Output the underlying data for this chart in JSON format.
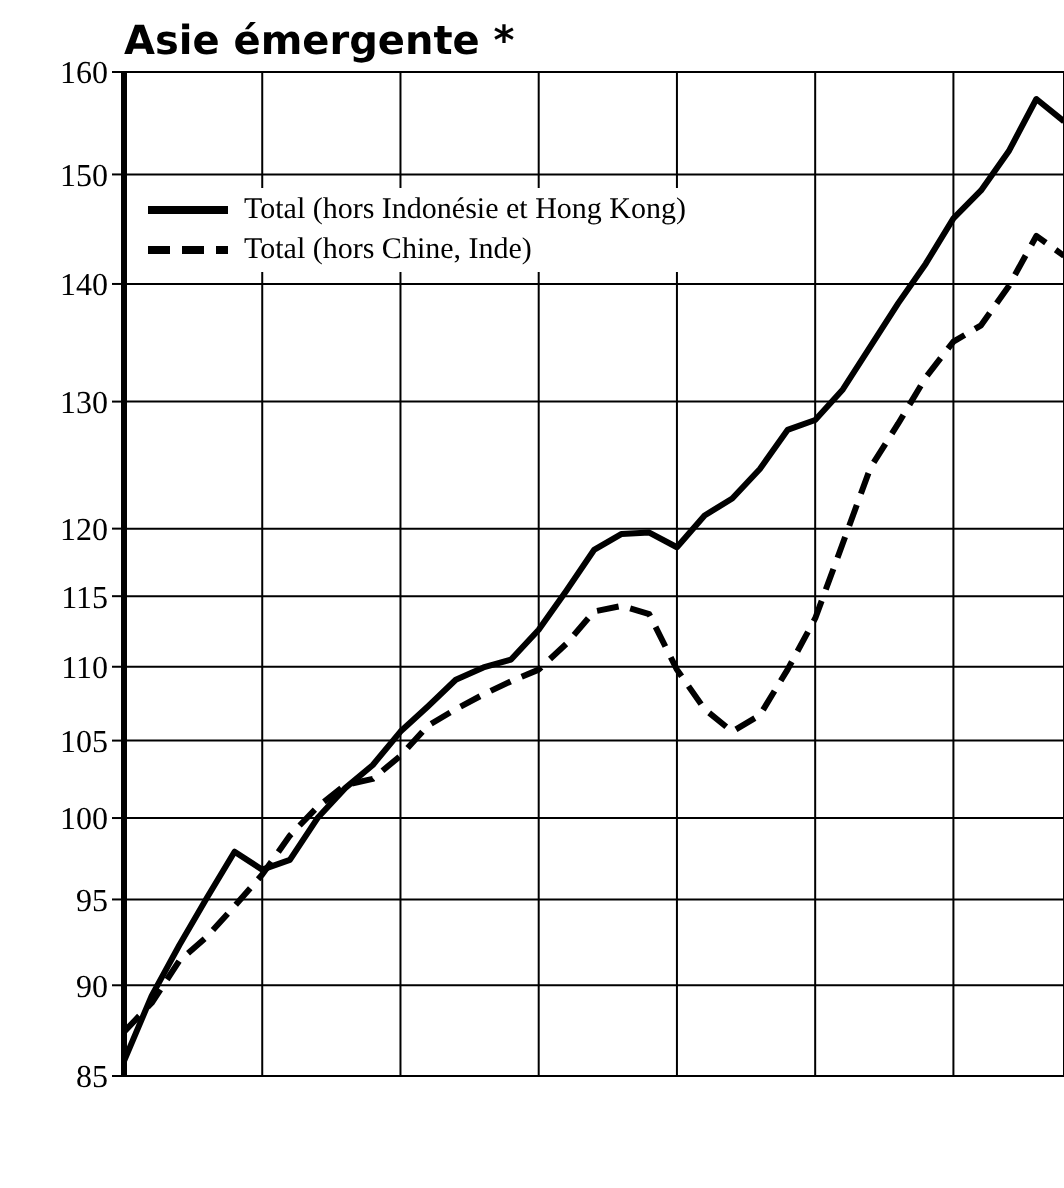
{
  "chart_data": {
    "type": "line",
    "title": "Asie émergente *",
    "log": "y",
    "grid": true,
    "legend": "top left",
    "tick_labels": "y",
    "marker": "none",
    "categories": [
      null,
      null,
      null,
      null,
      null,
      null,
      null,
      null,
      null,
      null,
      null,
      null,
      null,
      null,
      null,
      null,
      null,
      null,
      null,
      null,
      null,
      null,
      null,
      null,
      null,
      null,
      null,
      null,
      null,
      null,
      null,
      null,
      null,
      null,
      null
    ],
    "ylim": [
      85,
      160
    ],
    "yticks": [
      85,
      90,
      95,
      100,
      105,
      110,
      115,
      120,
      130,
      140,
      150,
      160
    ],
    "series": [
      {
        "name": "Total (hors Indonésie et Hong Kong)",
        "color": "#000000",
        "line_style": "solid",
        "values": [
          85.8,
          89.4,
          92.3,
          95.1,
          97.9,
          96.8,
          97.4,
          100.0,
          101.9,
          103.4,
          105.6,
          107.3,
          109.1,
          109.95,
          110.5,
          112.6,
          115.4,
          118.4,
          119.6,
          119.7,
          118.6,
          121.0,
          122.3,
          124.6,
          127.7,
          128.5,
          131.0,
          134.6,
          138.3,
          141.8,
          145.9,
          148.5,
          152.2,
          157.3,
          155.1
        ]
      },
      {
        "name": "Total (hors Chine, Inde)",
        "color": "#000000",
        "line_style": "dashed",
        "values": [
          87.4,
          89.0,
          91.4,
          92.8,
          94.6,
          96.5,
          98.9,
          100.7,
          102.1,
          102.5,
          104.0,
          106.0,
          107.1,
          108.1,
          109.0,
          109.8,
          111.6,
          113.9,
          114.3,
          113.7,
          109.8,
          107.1,
          105.6,
          106.7,
          109.8,
          113.4,
          118.9,
          124.7,
          128.2,
          132.0,
          135.0,
          136.4,
          139.8,
          144.3,
          142.5
        ]
      }
    ]
  }
}
